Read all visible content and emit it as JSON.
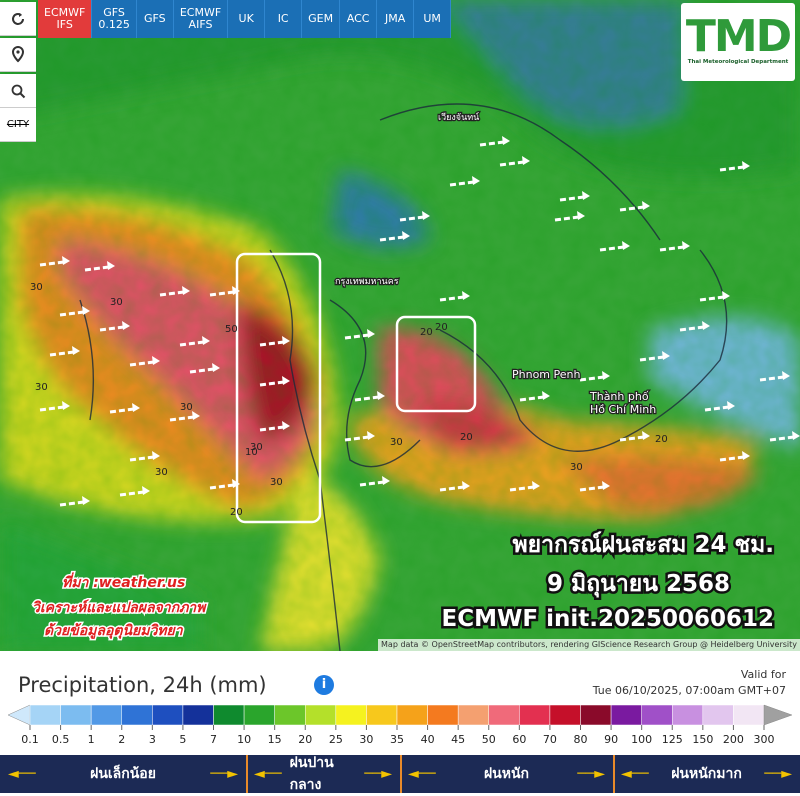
{
  "toolbar": {
    "models": [
      {
        "line1": "ECMWF",
        "line2": "IFS"
      },
      {
        "line1": "GFS",
        "line2": "0.125"
      },
      {
        "line1": "GFS"
      },
      {
        "line1": "ECMWF",
        "line2": "AIFS"
      },
      {
        "line1": "UK"
      },
      {
        "line1": "IC"
      },
      {
        "line1": "GEM"
      },
      {
        "line1": "ACC"
      },
      {
        "line1": "JMA"
      },
      {
        "line1": "UM"
      }
    ],
    "city_button": "CITY"
  },
  "logo": {
    "text": "TMD",
    "subtitle": "Thai Meteorological Department"
  },
  "map_labels": {
    "bangkok": "กรุงเทพมหานคร",
    "vientiane": "เวียงจันทน์",
    "phnom_penh": "Phnom Penh",
    "hcmc_line1": "Thành phố",
    "hcmc_line2": "Hồ Chí Minh"
  },
  "contour_labels": [
    30,
    30,
    50,
    30,
    30,
    30,
    20,
    20,
    30,
    30,
    20,
    20,
    10,
    30,
    20,
    30
  ],
  "overlay": {
    "title": "พยากรณ์ฝนสะสม 24 ชม.",
    "date": "9 มิถุนายน 2568",
    "init": "ECMWF init.20250060612"
  },
  "source": {
    "line1": "ที่มา :weather.us",
    "line2": "วิเคราะห์และแปลผลจากภาพ",
    "line3": "ด้วยข้อมูลอุตุนิยมวิทยา"
  },
  "attribution": "Map data © OpenStreetMap contributors, rendering GIScience Research Group @ Heidelberg University",
  "legend": {
    "title": "Precipitation, 24h (mm)",
    "valid_label": "Valid for",
    "valid_time": "Tue 06/10/2025, 07:00am GMT+07",
    "labels": [
      0.1,
      0.5,
      1,
      2,
      3,
      5,
      7,
      10,
      15,
      20,
      25,
      30,
      35,
      40,
      45,
      50,
      60,
      70,
      80,
      90,
      100,
      125,
      150,
      200,
      300
    ],
    "colors": [
      "#cfe8fb",
      "#a5d4f6",
      "#7cbcf0",
      "#5299e6",
      "#2f73d6",
      "#1e4fbf",
      "#14319a",
      "#0f8a2e",
      "#2aa52c",
      "#6cc62a",
      "#b4e02a",
      "#f5f21f",
      "#f7c81c",
      "#f5a21a",
      "#f47a1f",
      "#f4a070",
      "#f06a7a",
      "#e33050",
      "#c5102a",
      "#8a0a2a",
      "#7a1aa0",
      "#a050c8",
      "#c890e0",
      "#e2c6ee",
      "#f2e6f4",
      "#a0a0a0"
    ],
    "classes": [
      "ฝนเล็กน้อย",
      "ฝนปานกลาง",
      "ฝนหนัก",
      "ฝนหนักมาก"
    ]
  }
}
